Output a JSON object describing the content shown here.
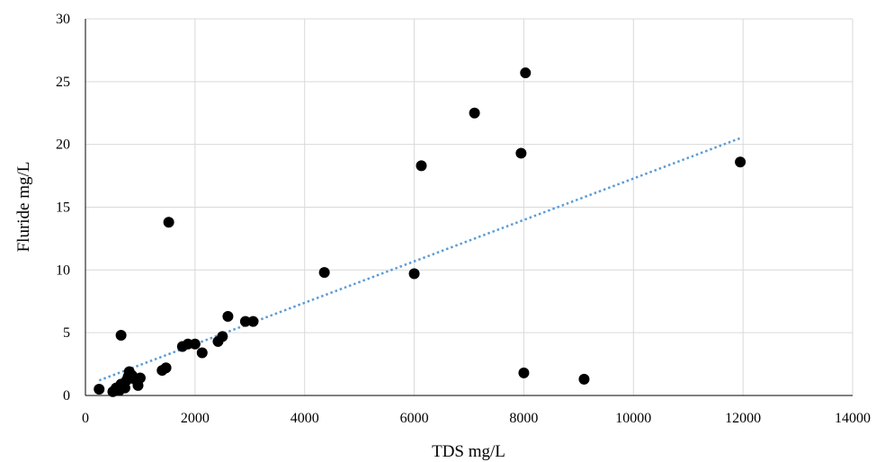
{
  "chart_data": {
    "type": "scatter",
    "title": "",
    "xlabel": "TDS mg/L",
    "ylabel": "Fluride mg/L",
    "xlim": [
      0,
      14000
    ],
    "ylim": [
      0,
      30
    ],
    "xticks": [
      "0",
      "2000",
      "4000",
      "6000",
      "8000",
      "10000",
      "12000",
      "14000"
    ],
    "yticks": [
      "0",
      "5",
      "10",
      "15",
      "20",
      "25",
      "30"
    ],
    "grid": true,
    "legend": "none",
    "marker_color": "#000000",
    "trendline_color": "#5B9BD5",
    "trendline": {
      "type": "linear",
      "style": "dotted",
      "x": [
        250,
        11950
      ],
      "y": [
        1.2,
        20.5
      ]
    },
    "series": [
      {
        "points": [
          [
            250,
            0.5
          ],
          [
            500,
            0.3
          ],
          [
            560,
            0.6
          ],
          [
            620,
            0.4
          ],
          [
            650,
            0.9
          ],
          [
            680,
            0.7
          ],
          [
            720,
            0.6
          ],
          [
            750,
            1.2
          ],
          [
            780,
            1.5
          ],
          [
            800,
            1.9
          ],
          [
            850,
            1.6
          ],
          [
            900,
            1.3
          ],
          [
            960,
            0.8
          ],
          [
            1000,
            1.4
          ],
          [
            650,
            4.8
          ],
          [
            1400,
            2.0
          ],
          [
            1470,
            2.2
          ],
          [
            1520,
            13.8
          ],
          [
            1770,
            3.9
          ],
          [
            1870,
            4.1
          ],
          [
            2000,
            4.1
          ],
          [
            2130,
            3.4
          ],
          [
            2420,
            4.3
          ],
          [
            2500,
            4.7
          ],
          [
            2600,
            6.3
          ],
          [
            2920,
            5.9
          ],
          [
            3060,
            5.9
          ],
          [
            4360,
            9.8
          ],
          [
            6000,
            9.7
          ],
          [
            6130,
            18.3
          ],
          [
            7100,
            22.5
          ],
          [
            7950,
            19.3
          ],
          [
            8000,
            1.8
          ],
          [
            8030,
            25.7
          ],
          [
            9100,
            1.3
          ],
          [
            11950,
            18.6
          ]
        ]
      }
    ]
  }
}
